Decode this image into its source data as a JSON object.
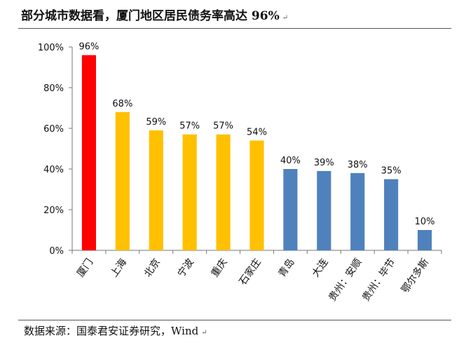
{
  "header": {
    "title": "部分城市数据看，厦门地区居民债务率高达 96%",
    "return_mark": "↵"
  },
  "footer": {
    "source": "数据来源：国泰君安证券研究，Wind",
    "return_mark": "↵"
  },
  "chart_data": {
    "type": "bar",
    "categories": [
      "厦门",
      "上海",
      "北京",
      "宁波",
      "重庆",
      "石家庄",
      "青岛",
      "大连",
      "贵州：安顺",
      "贵州：毕节",
      "鄂尔多斯"
    ],
    "values": [
      96,
      68,
      59,
      57,
      57,
      54,
      40,
      39,
      38,
      35,
      10
    ],
    "data_labels": [
      "96%",
      "68%",
      "59%",
      "57%",
      "57%",
      "54%",
      "40%",
      "39%",
      "38%",
      "35%",
      "10%"
    ],
    "colors": [
      "#FF0000",
      "#FFC000",
      "#FFC000",
      "#FFC000",
      "#FFC000",
      "#FFC000",
      "#4F81BD",
      "#4F81BD",
      "#4F81BD",
      "#4F81BD",
      "#4F81BD"
    ],
    "ylim": [
      0,
      100
    ],
    "yticks": [
      0,
      20,
      40,
      60,
      80,
      100
    ],
    "ytick_labels": [
      "0%",
      "20%",
      "40%",
      "60%",
      "80%",
      "100%"
    ],
    "grid": false,
    "legend": "none"
  }
}
